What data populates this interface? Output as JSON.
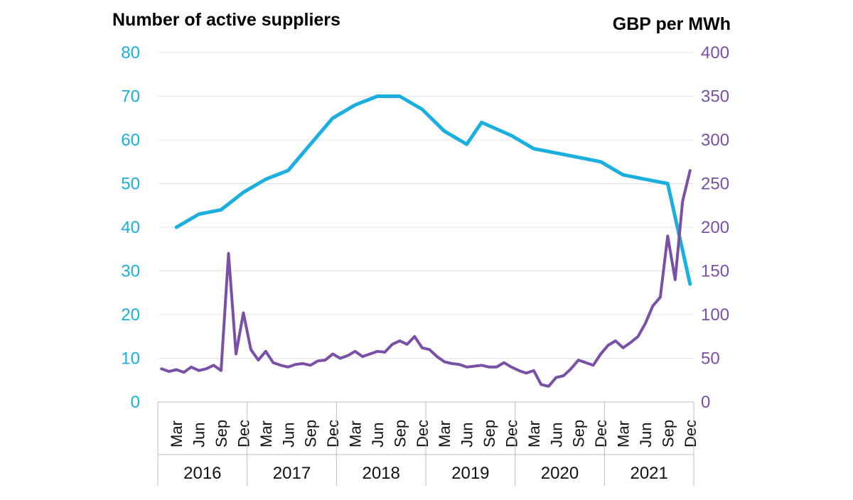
{
  "colors": {
    "suppliers": "#1AAFDF",
    "price": "#7A4FA6",
    "grid": "#CFCFCF",
    "text": "#111111"
  },
  "chart_data": {
    "type": "line",
    "left_axis": {
      "title": "Number of active suppliers",
      "min": 0,
      "max": 80,
      "ticks": [
        "0",
        "10",
        "20",
        "30",
        "40",
        "50",
        "60",
        "70",
        "80"
      ]
    },
    "right_axis": {
      "title": "GBP per MWh",
      "min": 0,
      "max": 400,
      "ticks": [
        "0",
        "50",
        "100",
        "150",
        "200",
        "250",
        "300",
        "350",
        "400"
      ]
    },
    "x_axis": {
      "start": "2016-01",
      "end": "2021-12",
      "month_labels": [
        {
          "month": "2016-03",
          "label": "Mar"
        },
        {
          "month": "2016-06",
          "label": "Jun"
        },
        {
          "month": "2016-09",
          "label": "Sep"
        },
        {
          "month": "2016-12",
          "label": "Dec"
        },
        {
          "month": "2017-03",
          "label": "Mar"
        },
        {
          "month": "2017-06",
          "label": "Jun"
        },
        {
          "month": "2017-09",
          "label": "Sep"
        },
        {
          "month": "2017-12",
          "label": "Dec"
        },
        {
          "month": "2018-03",
          "label": "Mar"
        },
        {
          "month": "2018-06",
          "label": "Jun"
        },
        {
          "month": "2018-09",
          "label": "Sep"
        },
        {
          "month": "2018-12",
          "label": "Dec"
        },
        {
          "month": "2019-03",
          "label": "Mar"
        },
        {
          "month": "2019-06",
          "label": "Jun"
        },
        {
          "month": "2019-09",
          "label": "Sep"
        },
        {
          "month": "2019-12",
          "label": "Dec"
        },
        {
          "month": "2020-03",
          "label": "Mar"
        },
        {
          "month": "2020-06",
          "label": "Jun"
        },
        {
          "month": "2020-09",
          "label": "Sep"
        },
        {
          "month": "2020-12",
          "label": "Dec"
        },
        {
          "month": "2021-03",
          "label": "Mar"
        },
        {
          "month": "2021-06",
          "label": "Jun"
        },
        {
          "month": "2021-09",
          "label": "Sep"
        },
        {
          "month": "2021-12",
          "label": "Dec"
        }
      ],
      "years": [
        "2016",
        "2017",
        "2018",
        "2019",
        "2020",
        "2021"
      ]
    },
    "series": [
      {
        "axis": "left",
        "points": [
          {
            "x": "2016-03",
            "y": 40
          },
          {
            "x": "2016-06",
            "y": 43
          },
          {
            "x": "2016-09",
            "y": 44
          },
          {
            "x": "2016-12",
            "y": 48
          },
          {
            "x": "2017-03",
            "y": 51
          },
          {
            "x": "2017-06",
            "y": 53
          },
          {
            "x": "2017-09",
            "y": 59
          },
          {
            "x": "2017-12",
            "y": 65
          },
          {
            "x": "2018-03",
            "y": 68
          },
          {
            "x": "2018-06",
            "y": 70
          },
          {
            "x": "2018-09",
            "y": 70
          },
          {
            "x": "2018-12",
            "y": 67
          },
          {
            "x": "2019-03",
            "y": 62
          },
          {
            "x": "2019-06",
            "y": 59
          },
          {
            "x": "2019-08",
            "y": 64
          },
          {
            "x": "2019-12",
            "y": 61
          },
          {
            "x": "2020-03",
            "y": 58
          },
          {
            "x": "2020-06",
            "y": 57
          },
          {
            "x": "2020-09",
            "y": 56
          },
          {
            "x": "2020-12",
            "y": 55
          },
          {
            "x": "2021-03",
            "y": 52
          },
          {
            "x": "2021-06",
            "y": 51
          },
          {
            "x": "2021-09",
            "y": 50
          },
          {
            "x": "2021-12",
            "y": 27
          }
        ]
      },
      {
        "axis": "right",
        "points": [
          {
            "x": "2016-01",
            "y": 38
          },
          {
            "x": "2016-02",
            "y": 35
          },
          {
            "x": "2016-03",
            "y": 37
          },
          {
            "x": "2016-04",
            "y": 34
          },
          {
            "x": "2016-05",
            "y": 40
          },
          {
            "x": "2016-06",
            "y": 36
          },
          {
            "x": "2016-07",
            "y": 38
          },
          {
            "x": "2016-08",
            "y": 42
          },
          {
            "x": "2016-09",
            "y": 36
          },
          {
            "x": "2016-10",
            "y": 170
          },
          {
            "x": "2016-11",
            "y": 55
          },
          {
            "x": "2016-12",
            "y": 102
          },
          {
            "x": "2017-01",
            "y": 60
          },
          {
            "x": "2017-02",
            "y": 48
          },
          {
            "x": "2017-03",
            "y": 58
          },
          {
            "x": "2017-04",
            "y": 45
          },
          {
            "x": "2017-05",
            "y": 42
          },
          {
            "x": "2017-06",
            "y": 40
          },
          {
            "x": "2017-07",
            "y": 43
          },
          {
            "x": "2017-08",
            "y": 44
          },
          {
            "x": "2017-09",
            "y": 42
          },
          {
            "x": "2017-10",
            "y": 47
          },
          {
            "x": "2017-11",
            "y": 48
          },
          {
            "x": "2017-12",
            "y": 55
          },
          {
            "x": "2018-01",
            "y": 50
          },
          {
            "x": "2018-02",
            "y": 53
          },
          {
            "x": "2018-03",
            "y": 58
          },
          {
            "x": "2018-04",
            "y": 52
          },
          {
            "x": "2018-05",
            "y": 55
          },
          {
            "x": "2018-06",
            "y": 58
          },
          {
            "x": "2018-07",
            "y": 57
          },
          {
            "x": "2018-08",
            "y": 66
          },
          {
            "x": "2018-09",
            "y": 70
          },
          {
            "x": "2018-10",
            "y": 66
          },
          {
            "x": "2018-11",
            "y": 75
          },
          {
            "x": "2018-12",
            "y": 62
          },
          {
            "x": "2019-01",
            "y": 60
          },
          {
            "x": "2019-02",
            "y": 52
          },
          {
            "x": "2019-03",
            "y": 46
          },
          {
            "x": "2019-04",
            "y": 44
          },
          {
            "x": "2019-05",
            "y": 43
          },
          {
            "x": "2019-06",
            "y": 40
          },
          {
            "x": "2019-07",
            "y": 41
          },
          {
            "x": "2019-08",
            "y": 42
          },
          {
            "x": "2019-09",
            "y": 40
          },
          {
            "x": "2019-10",
            "y": 40
          },
          {
            "x": "2019-11",
            "y": 45
          },
          {
            "x": "2019-12",
            "y": 40
          },
          {
            "x": "2020-01",
            "y": 36
          },
          {
            "x": "2020-02",
            "y": 33
          },
          {
            "x": "2020-03",
            "y": 36
          },
          {
            "x": "2020-04",
            "y": 20
          },
          {
            "x": "2020-05",
            "y": 18
          },
          {
            "x": "2020-06",
            "y": 28
          },
          {
            "x": "2020-07",
            "y": 30
          },
          {
            "x": "2020-08",
            "y": 38
          },
          {
            "x": "2020-09",
            "y": 48
          },
          {
            "x": "2020-10",
            "y": 45
          },
          {
            "x": "2020-11",
            "y": 42
          },
          {
            "x": "2020-12",
            "y": 55
          },
          {
            "x": "2021-01",
            "y": 65
          },
          {
            "x": "2021-02",
            "y": 70
          },
          {
            "x": "2021-03",
            "y": 62
          },
          {
            "x": "2021-04",
            "y": 68
          },
          {
            "x": "2021-05",
            "y": 75
          },
          {
            "x": "2021-06",
            "y": 90
          },
          {
            "x": "2021-07",
            "y": 110
          },
          {
            "x": "2021-08",
            "y": 120
          },
          {
            "x": "2021-09",
            "y": 190
          },
          {
            "x": "2021-10",
            "y": 140
          },
          {
            "x": "2021-11",
            "y": 230
          },
          {
            "x": "2021-12",
            "y": 265
          }
        ]
      }
    ]
  }
}
